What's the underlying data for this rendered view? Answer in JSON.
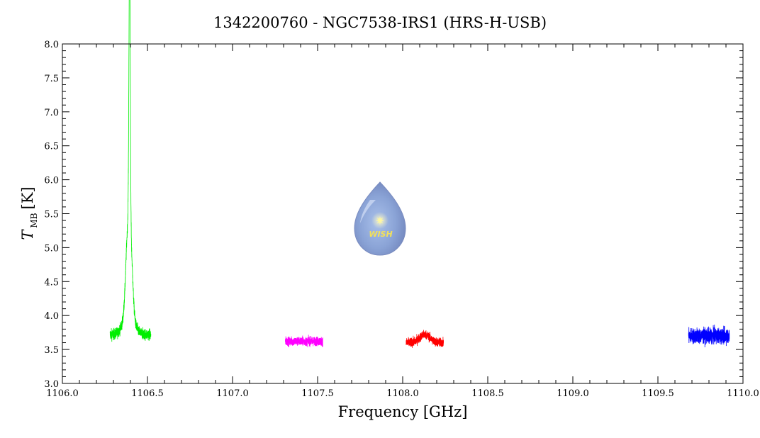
{
  "chart_data": {
    "type": "line",
    "title": "1342200760 - NGC7538-IRS1 (HRS-H-USB)",
    "xlabel": "Frequency [GHz]",
    "ylabel_main": "T",
    "ylabel_sub": "MB",
    "ylabel_unit": "[K]",
    "xlim": [
      1106.0,
      1110.0
    ],
    "ylim": [
      3.0,
      8.0
    ],
    "xticks": [
      "1106.0",
      "1106.5",
      "1107.0",
      "1107.5",
      "1108.0",
      "1108.5",
      "1109.0",
      "1109.5",
      "1110.0"
    ],
    "yticks": [
      "3.0",
      "3.5",
      "4.0",
      "4.5",
      "5.0",
      "5.5",
      "6.0",
      "6.5",
      "7.0",
      "7.5",
      "8.0"
    ],
    "grid": false,
    "logo_text": "WISH",
    "series": [
      {
        "color": "#00ee00",
        "x_range": [
          1106.28,
          1106.52
        ],
        "baseline": 3.72,
        "noise": 0.16,
        "peaks": [
          {
            "x": 1106.395,
            "height": 3.95,
            "width": 0.004
          },
          {
            "x": 1106.385,
            "height": 1.2,
            "width": 0.012
          },
          {
            "x": 1106.405,
            "height": 0.7,
            "width": 0.01
          },
          {
            "x": 1106.39,
            "height": 0.35,
            "width": 0.03
          }
        ]
      },
      {
        "color": "#ff00ff",
        "x_range": [
          1107.31,
          1107.53
        ],
        "baseline": 3.62,
        "noise": 0.13,
        "peaks": []
      },
      {
        "color": "#ff0000",
        "x_range": [
          1108.02,
          1108.24
        ],
        "baseline": 3.6,
        "noise": 0.13,
        "peaks": [
          {
            "x": 1108.13,
            "height": 0.12,
            "width": 0.03
          }
        ]
      },
      {
        "color": "#0000ff",
        "x_range": [
          1109.68,
          1109.92
        ],
        "baseline": 3.7,
        "noise": 0.22,
        "peaks": []
      }
    ]
  }
}
